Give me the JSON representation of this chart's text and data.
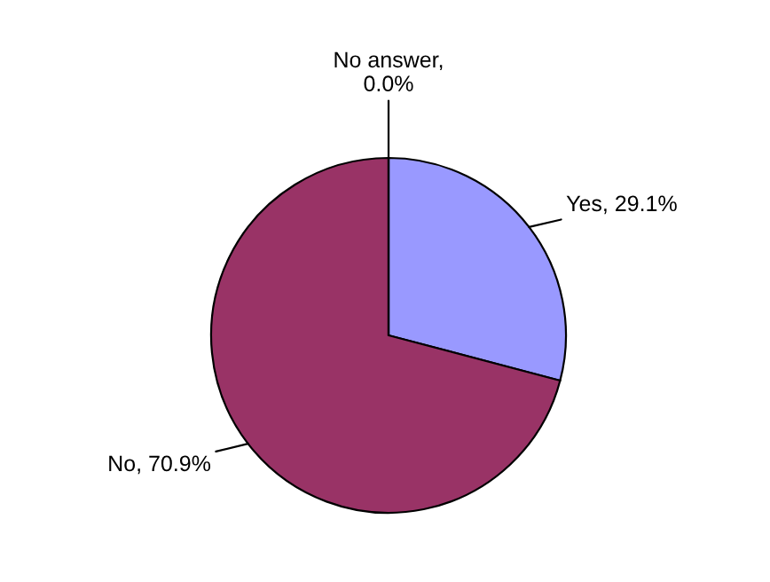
{
  "chart_data": {
    "type": "pie",
    "categories": [
      "Yes",
      "No",
      "No answer"
    ],
    "values": [
      29.1,
      70.9,
      0.0
    ],
    "colors": [
      "#9999ff",
      "#993366",
      "#ffffcc"
    ],
    "value_labels": [
      ", 29.1%",
      ", 70.9%",
      ",\n0.0%"
    ],
    "legend": false
  }
}
